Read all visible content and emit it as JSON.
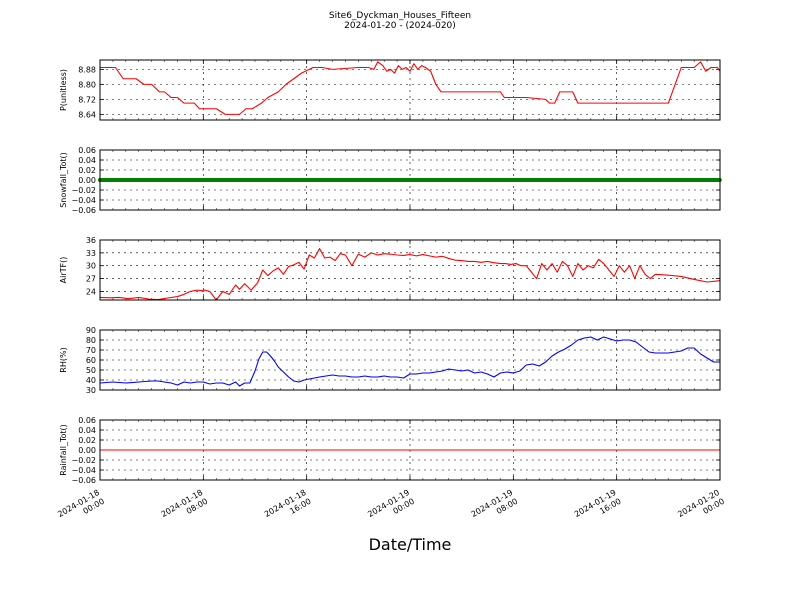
{
  "figure": {
    "title": "Site6_Dyckman_Houses_Fifteen",
    "subtitle": "2024-01-20 - (2024-020)",
    "xlabel": "Date/Time"
  },
  "x_ticks": [
    {
      "hours": 0,
      "lines": [
        "2024-01-18",
        "00:00"
      ]
    },
    {
      "hours": 8,
      "lines": [
        "2024-01-18",
        "08:00"
      ]
    },
    {
      "hours": 16,
      "lines": [
        "2024-01-18",
        "16:00"
      ]
    },
    {
      "hours": 24,
      "lines": [
        "2024-01-19",
        "00:00"
      ]
    },
    {
      "hours": 32,
      "lines": [
        "2024-01-19",
        "08:00"
      ]
    },
    {
      "hours": 40,
      "lines": [
        "2024-01-19",
        "16:00"
      ]
    },
    {
      "hours": 48,
      "lines": [
        "2024-01-20",
        "00:00"
      ]
    }
  ],
  "chart_data": [
    {
      "type": "line",
      "ylabel": "P(unitless)",
      "ylim": [
        8.61,
        8.93
      ],
      "yticks": [
        "8.64",
        "8.72",
        "8.80",
        "8.88"
      ],
      "ytick_values": [
        8.64,
        8.72,
        8.8,
        8.88
      ],
      "grid": true,
      "series": [
        {
          "color": "#ff0000",
          "x": [
            0,
            1.2,
            1.8,
            2.8,
            3.4,
            4.0,
            4.6,
            5.0,
            5.5,
            6.0,
            6.5,
            6.9,
            7.3,
            7.7,
            8.0,
            8.4,
            9.0,
            9.7,
            10.2,
            10.8,
            11.3,
            11.8,
            12.5,
            13.0,
            13.8,
            14.4,
            15.0,
            15.6,
            16.5,
            17.2,
            18.0,
            20.0,
            20.8,
            21.2,
            21.5,
            21.9,
            22.2,
            22.5,
            22.8,
            23.1,
            23.4,
            23.7,
            24.0,
            24.3,
            24.6,
            24.9,
            25.2,
            25.6,
            26.0,
            26.4,
            27.0,
            28.0,
            30.0,
            31.0,
            31.3,
            31.6,
            32.0,
            33.0,
            34.5,
            34.8,
            35.2,
            35.6,
            36.0,
            36.6,
            37.0,
            37.3,
            37.5,
            38.0,
            39.0,
            40.0,
            40.3,
            40.6,
            40.9,
            41.2,
            41.5,
            41.8,
            42.2,
            42.6,
            43.0,
            44.0,
            45.0,
            46.0,
            46.5,
            46.9,
            47.3,
            47.8,
            48.0
          ],
          "y": [
            8.89,
            8.89,
            8.83,
            8.83,
            8.8,
            8.8,
            8.76,
            8.76,
            8.73,
            8.73,
            8.7,
            8.7,
            8.7,
            8.67,
            8.67,
            8.67,
            8.67,
            8.64,
            8.64,
            8.64,
            8.67,
            8.67,
            8.7,
            8.73,
            8.76,
            8.8,
            8.83,
            8.86,
            8.89,
            8.89,
            8.88,
            8.89,
            8.89,
            8.88,
            8.92,
            8.9,
            8.87,
            8.88,
            8.86,
            8.9,
            8.88,
            8.89,
            8.87,
            8.91,
            8.88,
            8.9,
            8.89,
            8.87,
            8.8,
            8.76,
            8.76,
            8.76,
            8.76,
            8.76,
            8.73,
            8.73,
            8.73,
            8.73,
            8.72,
            8.7,
            8.7,
            8.76,
            8.76,
            8.76,
            8.7,
            8.7,
            8.7,
            8.7,
            8.7,
            8.7,
            8.7,
            8.7,
            8.7,
            8.7,
            8.7,
            8.7,
            8.7,
            8.7,
            8.7,
            8.7,
            8.89,
            8.89,
            8.92,
            8.87,
            8.89,
            8.89,
            8.87
          ]
        }
      ]
    },
    {
      "type": "scatter",
      "ylabel": "Snowfall_Tot()",
      "ylim": [
        -0.06,
        0.06
      ],
      "yticks": [
        "−0.06",
        "−0.04",
        "−0.02",
        "0.00",
        "0.02",
        "0.04",
        "0.06"
      ],
      "ytick_values": [
        -0.06,
        -0.04,
        -0.02,
        0.0,
        0.02,
        0.04,
        0.06
      ],
      "grid": true,
      "series": [
        {
          "color": "#008000",
          "x_start": 0,
          "x_end": 48,
          "x_step": 0.0833,
          "y_constant": 0.0
        }
      ]
    },
    {
      "type": "line",
      "ylabel": "AirTF()",
      "ylim": [
        22,
        36
      ],
      "yticks": [
        "24",
        "27",
        "30",
        "33",
        "36"
      ],
      "ytick_values": [
        24,
        27,
        30,
        33,
        36
      ],
      "grid": true,
      "series": [
        {
          "color": "#ff0000",
          "x": [
            0,
            0.8,
            1.5,
            2.2,
            3.0,
            3.8,
            4.5,
            5.3,
            6.0,
            6.5,
            7.0,
            7.5,
            7.8,
            8.1,
            8.5,
            9.0,
            9.5,
            10.0,
            10.5,
            10.8,
            11.2,
            11.7,
            12.2,
            12.6,
            13.0,
            13.4,
            13.8,
            14.2,
            14.6,
            15.0,
            15.4,
            15.8,
            16.2,
            16.6,
            17.0,
            17.4,
            17.8,
            18.2,
            18.6,
            19.0,
            19.5,
            20.0,
            20.5,
            21.0,
            21.5,
            22.0,
            22.5,
            23.0,
            23.5,
            24.0,
            24.5,
            25.0,
            25.5,
            26.0,
            26.5,
            27.0,
            27.5,
            28.0,
            28.5,
            29.0,
            29.5,
            30.0,
            30.5,
            31.0,
            31.4,
            31.8,
            32.2,
            32.6,
            33.0,
            33.4,
            33.8,
            34.2,
            34.6,
            35.0,
            35.4,
            35.8,
            36.2,
            36.6,
            37.0,
            37.4,
            37.8,
            38.2,
            38.6,
            39.0,
            39.4,
            39.8,
            40.2,
            40.6,
            41.0,
            41.4,
            41.8,
            42.2,
            42.6,
            43.0,
            44.0,
            45.0,
            46.0,
            47.0,
            48.0
          ],
          "y": [
            22.6,
            22.5,
            22.6,
            22.3,
            22.6,
            22.2,
            22.1,
            22.5,
            22.8,
            23.3,
            24.0,
            24.3,
            24.2,
            24.3,
            24.0,
            22.0,
            24.0,
            23.3,
            25.5,
            24.5,
            25.8,
            24.3,
            26.0,
            29.0,
            27.7,
            28.8,
            29.5,
            28.0,
            29.8,
            30.2,
            30.8,
            29.2,
            32.5,
            31.8,
            34.0,
            31.8,
            32.0,
            31.2,
            32.8,
            32.5,
            30.0,
            32.7,
            32.0,
            33.0,
            32.5,
            32.8,
            32.7,
            32.5,
            32.4,
            32.6,
            32.3,
            32.6,
            32.3,
            32.0,
            32.2,
            31.7,
            31.3,
            31.2,
            31.0,
            31.0,
            30.8,
            31.0,
            30.7,
            30.5,
            30.5,
            30.3,
            30.5,
            30.0,
            30.0,
            28.5,
            27.0,
            30.5,
            29.0,
            30.5,
            28.5,
            31.0,
            30.0,
            27.5,
            30.5,
            29.0,
            30.0,
            29.5,
            31.5,
            30.5,
            29.0,
            27.5,
            30.0,
            28.5,
            30.0,
            27.0,
            30.0,
            28.0,
            27.0,
            28.0,
            27.8,
            27.5,
            26.8,
            26.2,
            26.5
          ]
        }
      ]
    },
    {
      "type": "line",
      "ylabel": "RH(%)",
      "ylim": [
        30,
        90
      ],
      "yticks": [
        "30",
        "40",
        "50",
        "60",
        "70",
        "80",
        "90"
      ],
      "ytick_values": [
        30,
        40,
        50,
        60,
        70,
        80,
        90
      ],
      "grid": true,
      "series": [
        {
          "color": "#0000ff",
          "x": [
            0,
            1.0,
            2.0,
            3.0,
            4.0,
            4.5,
            5.0,
            5.5,
            6.0,
            6.5,
            7.0,
            7.5,
            8.0,
            8.5,
            9.0,
            9.5,
            10.0,
            10.5,
            10.8,
            11.2,
            11.6,
            12.0,
            12.3,
            12.6,
            12.9,
            13.2,
            13.5,
            13.8,
            14.2,
            14.6,
            15.0,
            15.4,
            15.8,
            16.2,
            16.6,
            17.0,
            17.5,
            18.0,
            18.5,
            19.0,
            19.5,
            20.0,
            20.5,
            21.0,
            21.5,
            22.0,
            22.5,
            23.0,
            23.5,
            24.0,
            24.5,
            25.0,
            25.5,
            26.0,
            26.5,
            27.0,
            27.5,
            28.0,
            28.5,
            29.0,
            29.5,
            30.0,
            30.5,
            31.0,
            31.5,
            32.0,
            32.5,
            33.0,
            33.5,
            34.0,
            34.5,
            35.0,
            35.5,
            36.0,
            36.5,
            37.0,
            37.5,
            38.0,
            38.5,
            39.0,
            39.5,
            40.0,
            40.5,
            41.0,
            41.5,
            42.0,
            42.5,
            43.0,
            43.5,
            44.0,
            44.5,
            45.0,
            45.5,
            46.0,
            46.5,
            47.0,
            47.5,
            48.0
          ],
          "y": [
            37,
            38,
            37,
            38,
            39,
            39,
            38,
            37,
            35,
            38,
            37,
            38,
            38,
            36,
            37,
            37,
            35,
            38,
            34,
            37,
            37,
            49,
            61,
            68,
            68,
            64,
            59,
            53,
            48,
            43,
            39,
            38,
            40,
            41,
            42,
            43,
            44,
            45,
            44,
            44,
            43,
            43,
            44,
            43,
            43,
            44,
            43,
            43,
            42,
            46,
            46,
            47,
            47,
            48,
            49,
            51,
            50,
            49,
            50,
            47,
            48,
            46,
            43,
            47,
            48,
            47,
            49,
            55,
            56,
            54,
            58,
            64,
            68,
            71,
            75,
            80,
            82,
            83,
            80,
            83,
            81,
            79,
            80,
            80,
            78,
            73,
            68,
            67,
            67,
            67,
            68,
            69,
            72,
            72,
            66,
            62,
            58,
            58
          ]
        }
      ]
    },
    {
      "type": "line",
      "ylabel": "Rainfall_Tot()",
      "ylim": [
        -0.06,
        0.06
      ],
      "yticks": [
        "−0.06",
        "−0.04",
        "−0.02",
        "0.00",
        "0.02",
        "0.04",
        "0.06"
      ],
      "ytick_values": [
        -0.06,
        -0.04,
        -0.02,
        0.0,
        0.02,
        0.04,
        0.06
      ],
      "grid": true,
      "series": [
        {
          "color": "#ff0000",
          "x": [
            0,
            48
          ],
          "y": [
            0.0,
            0.0
          ]
        }
      ]
    }
  ],
  "x_range": [
    0,
    48
  ]
}
